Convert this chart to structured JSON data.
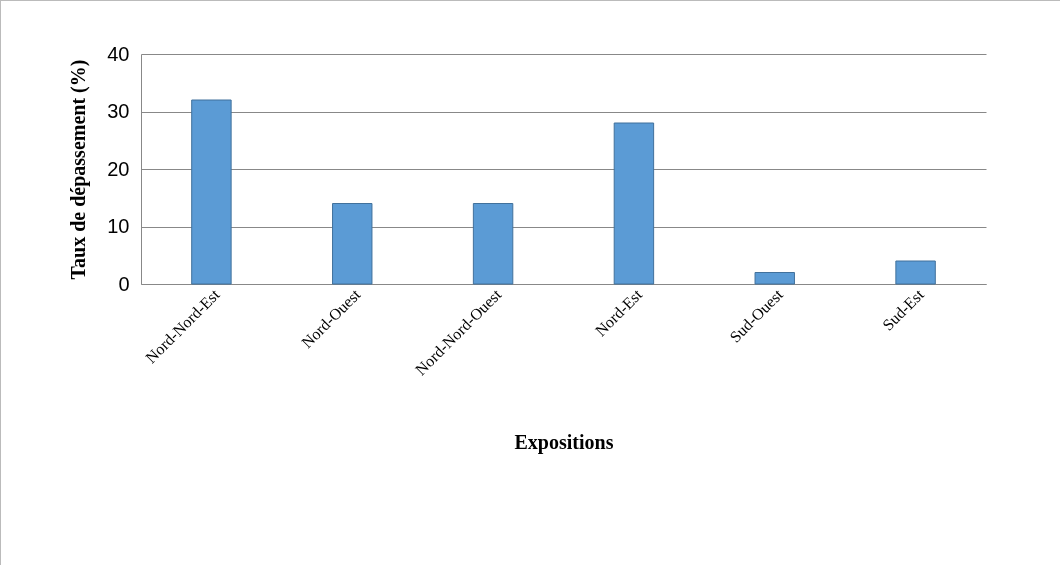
{
  "chart_data": {
    "type": "bar",
    "xlabel": "Expositions",
    "ylabel": "Taux de dépassement (%)",
    "categories": [
      "Nord-Nord-Est",
      "Nord-Ouest",
      "Nord-Nord-Ouest",
      "Nord-Est",
      "Sud-Ouest",
      "Sud-Est"
    ],
    "values": [
      32,
      14,
      14,
      28,
      2,
      4
    ],
    "color": "#5b9bd5",
    "ylim": [
      0,
      40
    ],
    "yticks": [
      0,
      10,
      20,
      30,
      40
    ],
    "grid": "y"
  }
}
